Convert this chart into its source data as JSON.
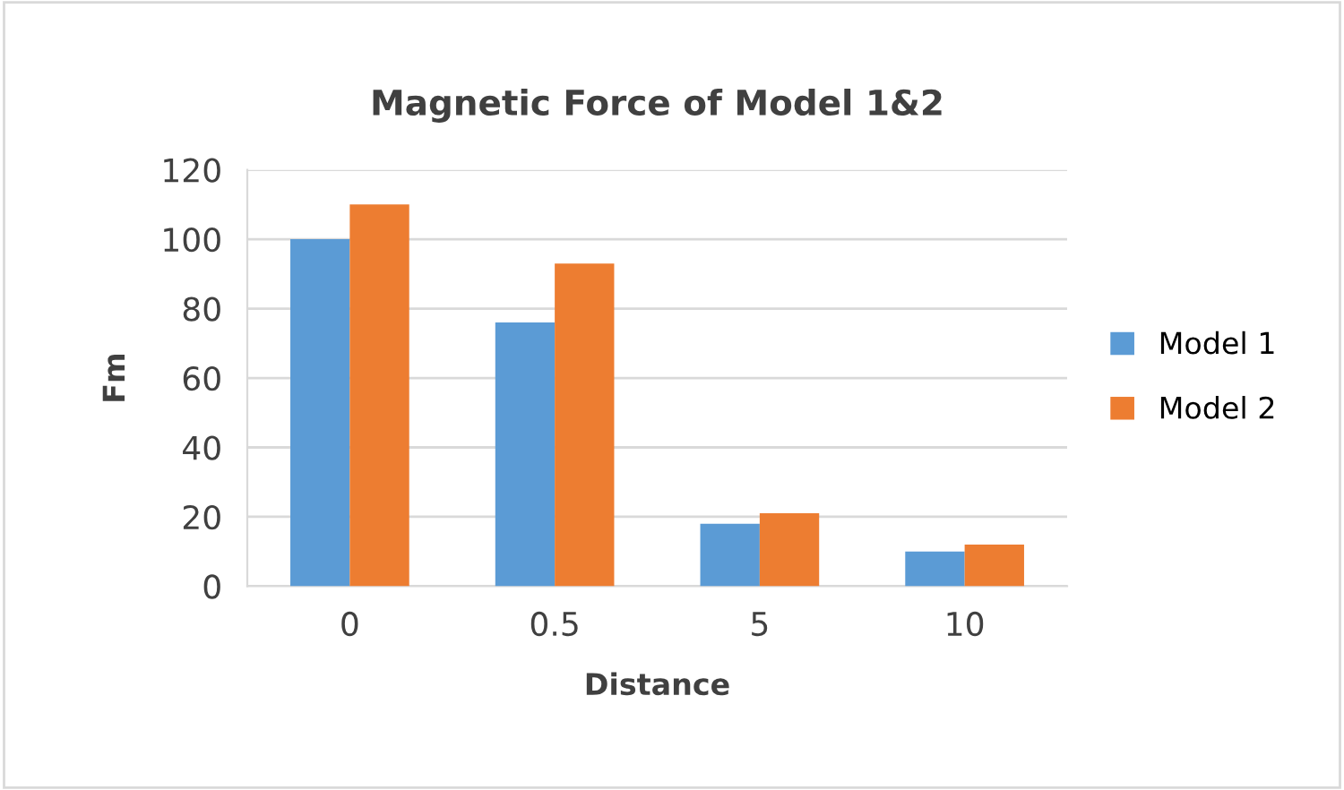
{
  "chart_data": {
    "type": "bar",
    "title": "Magnetic Force of Model 1&2",
    "xlabel": "Distance",
    "ylabel": "Fm",
    "categories": [
      "0",
      "0.5",
      "5",
      "10"
    ],
    "series": [
      {
        "name": "Model 1",
        "color": "#5b9bd5",
        "values": [
          100,
          76,
          18,
          10
        ]
      },
      {
        "name": "Model 2",
        "color": "#ed7d31",
        "values": [
          110,
          93,
          21,
          12
        ]
      }
    ],
    "ylim": [
      0,
      120
    ],
    "yticks": [
      0,
      20,
      40,
      60,
      80,
      100,
      120
    ],
    "grid": "y",
    "legend": "right"
  }
}
